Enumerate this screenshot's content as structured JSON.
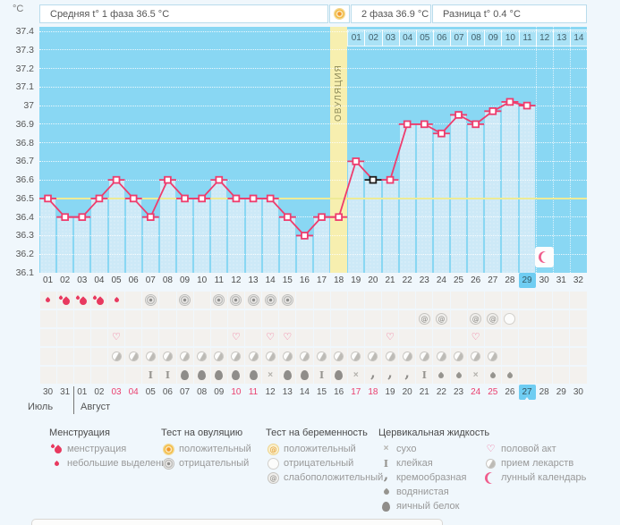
{
  "header": {
    "unit": "°C",
    "phase1_label": "Средняя t° 1 фаза 36.5 °C",
    "phase2_label": "2 фаза 36.9 °C",
    "difference_label": "Разница t° 0.4 °C"
  },
  "chart_data": {
    "type": "line",
    "ylabel": "°C",
    "ylim": [
      36.1,
      37.4
    ],
    "ytick_labels": [
      "37.4",
      "37.3",
      "37.2",
      "37.1",
      "37",
      "36.9",
      "36.8",
      "36.7",
      "36.6",
      "36.5",
      "36.4",
      "36.3",
      "36.2",
      "36.1"
    ],
    "x_day_labels": [
      "01",
      "02",
      "03",
      "04",
      "05",
      "06",
      "07",
      "08",
      "09",
      "10",
      "11",
      "12",
      "13",
      "14",
      "15",
      "16",
      "17",
      "18",
      "19",
      "20",
      "21",
      "22",
      "23",
      "24",
      "25",
      "26",
      "27",
      "28",
      "29",
      "30",
      "31",
      "32"
    ],
    "start_day": 1,
    "values": [
      36.5,
      36.4,
      36.4,
      36.5,
      36.6,
      36.5,
      36.4,
      36.6,
      36.5,
      36.5,
      36.6,
      36.5,
      36.5,
      36.5,
      36.4,
      36.3,
      36.4,
      36.4,
      36.7,
      36.6,
      36.6,
      36.9,
      36.9,
      36.85,
      36.95,
      36.9,
      36.97,
      37.02,
      37.0
    ],
    "coverline_value": 36.5,
    "ovulation_day": 18,
    "ovulation_label": "ОВУЛЯЦИЯ",
    "selected_day": 20,
    "highlighted_day": 29,
    "phase2_start_day": 19,
    "phase2_day_labels": [
      "01",
      "02",
      "03",
      "04",
      "05",
      "06",
      "07",
      "08",
      "09",
      "10",
      "11",
      "12",
      "13",
      "14"
    ],
    "lunar_event_day": 30
  },
  "symptoms": {
    "menstruation": {
      "1": "spotting",
      "2": "heavy",
      "3": "heavy",
      "4": "heavy",
      "5": "spotting"
    },
    "ovulation_tests": {
      "7": "negative",
      "9": "negative",
      "11": "negative",
      "12": "negative",
      "13": "negative",
      "14": "negative",
      "15": "negative"
    },
    "pregnancy_tests": {
      "23": "weak-positive",
      "24": "weak-positive",
      "26": "weak-positive",
      "27": "weak-positive",
      "28": "negative"
    },
    "intercourse_days": [
      5,
      12,
      14,
      15,
      21,
      26
    ],
    "medication_days": [
      5,
      6,
      7,
      8,
      9,
      10,
      11,
      12,
      13,
      14,
      15,
      16,
      17,
      18,
      19,
      20,
      21,
      22,
      23,
      24,
      25,
      26,
      27
    ],
    "cervical_fluid": {
      "7": "sticky",
      "8": "sticky",
      "9": "egg-white",
      "10": "egg-white",
      "11": "egg-white",
      "12": "egg-white",
      "13": "egg-white",
      "14": "dry",
      "15": "egg-white",
      "16": "egg-white",
      "17": "sticky",
      "18": "egg-white",
      "19": "dry",
      "20": "creamy",
      "21": "creamy",
      "22": "creamy",
      "23": "sticky",
      "24": "watery",
      "25": "watery",
      "26": "dry",
      "27": "watery",
      "28": "watery"
    }
  },
  "dates": {
    "labels": [
      "30",
      "31",
      "01",
      "02",
      "03",
      "04",
      "05",
      "06",
      "07",
      "08",
      "09",
      "10",
      "11",
      "12",
      "13",
      "14",
      "15",
      "16",
      "17",
      "18",
      "19",
      "20",
      "21",
      "22",
      "23",
      "24",
      "25",
      "26",
      "27",
      "28",
      "29",
      "30"
    ],
    "weekend_indices": [
      4,
      5,
      11,
      12,
      18,
      19,
      25,
      26
    ],
    "highlighted_index": 28,
    "months": [
      {
        "label": "Июль"
      },
      {
        "label": "Август"
      }
    ]
  },
  "legend": {
    "sections": [
      {
        "header": "Менструация",
        "items": [
          {
            "icon": "menstruation-heavy",
            "label": "менструация"
          },
          {
            "icon": "menstruation-spotting",
            "label": "небольшие выделения"
          }
        ]
      },
      {
        "header": "Тест на овуляцию",
        "items": [
          {
            "icon": "ovulation-test-positive",
            "label": "положительный"
          },
          {
            "icon": "ovulation-test-negative",
            "label": "отрицательный"
          }
        ]
      },
      {
        "header": "Тест на беременность",
        "items": [
          {
            "icon": "pregnancy-test-positive",
            "label": "положительный"
          },
          {
            "icon": "pregnancy-test-negative",
            "label": "отрицательный"
          },
          {
            "icon": "pregnancy-test-weak-positive",
            "label": "слабоположительный"
          }
        ]
      },
      {
        "header": "Цервикальная жидкость",
        "items": [
          {
            "icon": "cf-dry",
            "label": "сухо"
          },
          {
            "icon": "cf-sticky",
            "label": "клейкая"
          },
          {
            "icon": "cf-creamy",
            "label": "кремообразная"
          },
          {
            "icon": "cf-watery",
            "label": "водянистая"
          },
          {
            "icon": "cf-eggwhite",
            "label": "яичный белок"
          }
        ]
      },
      {
        "header": "",
        "items": [
          {
            "icon": "intercourse-heart",
            "label": "половой акт"
          },
          {
            "icon": "medication-pill",
            "label": "прием лекарств"
          },
          {
            "icon": "moon-crescent",
            "label": "лунный календарь"
          }
        ]
      }
    ]
  },
  "colors": {
    "accent_pink": "#ee3c6d",
    "plot_background": "#89d7f3",
    "fill_column": "#cde9f7",
    "ovulation_band": "#f7efaf",
    "coverline": "#eeeb96",
    "highlight_blue": "#6fcdf2",
    "positive_orange": "#f2992c",
    "weekend_red": "#ea3f6e"
  }
}
